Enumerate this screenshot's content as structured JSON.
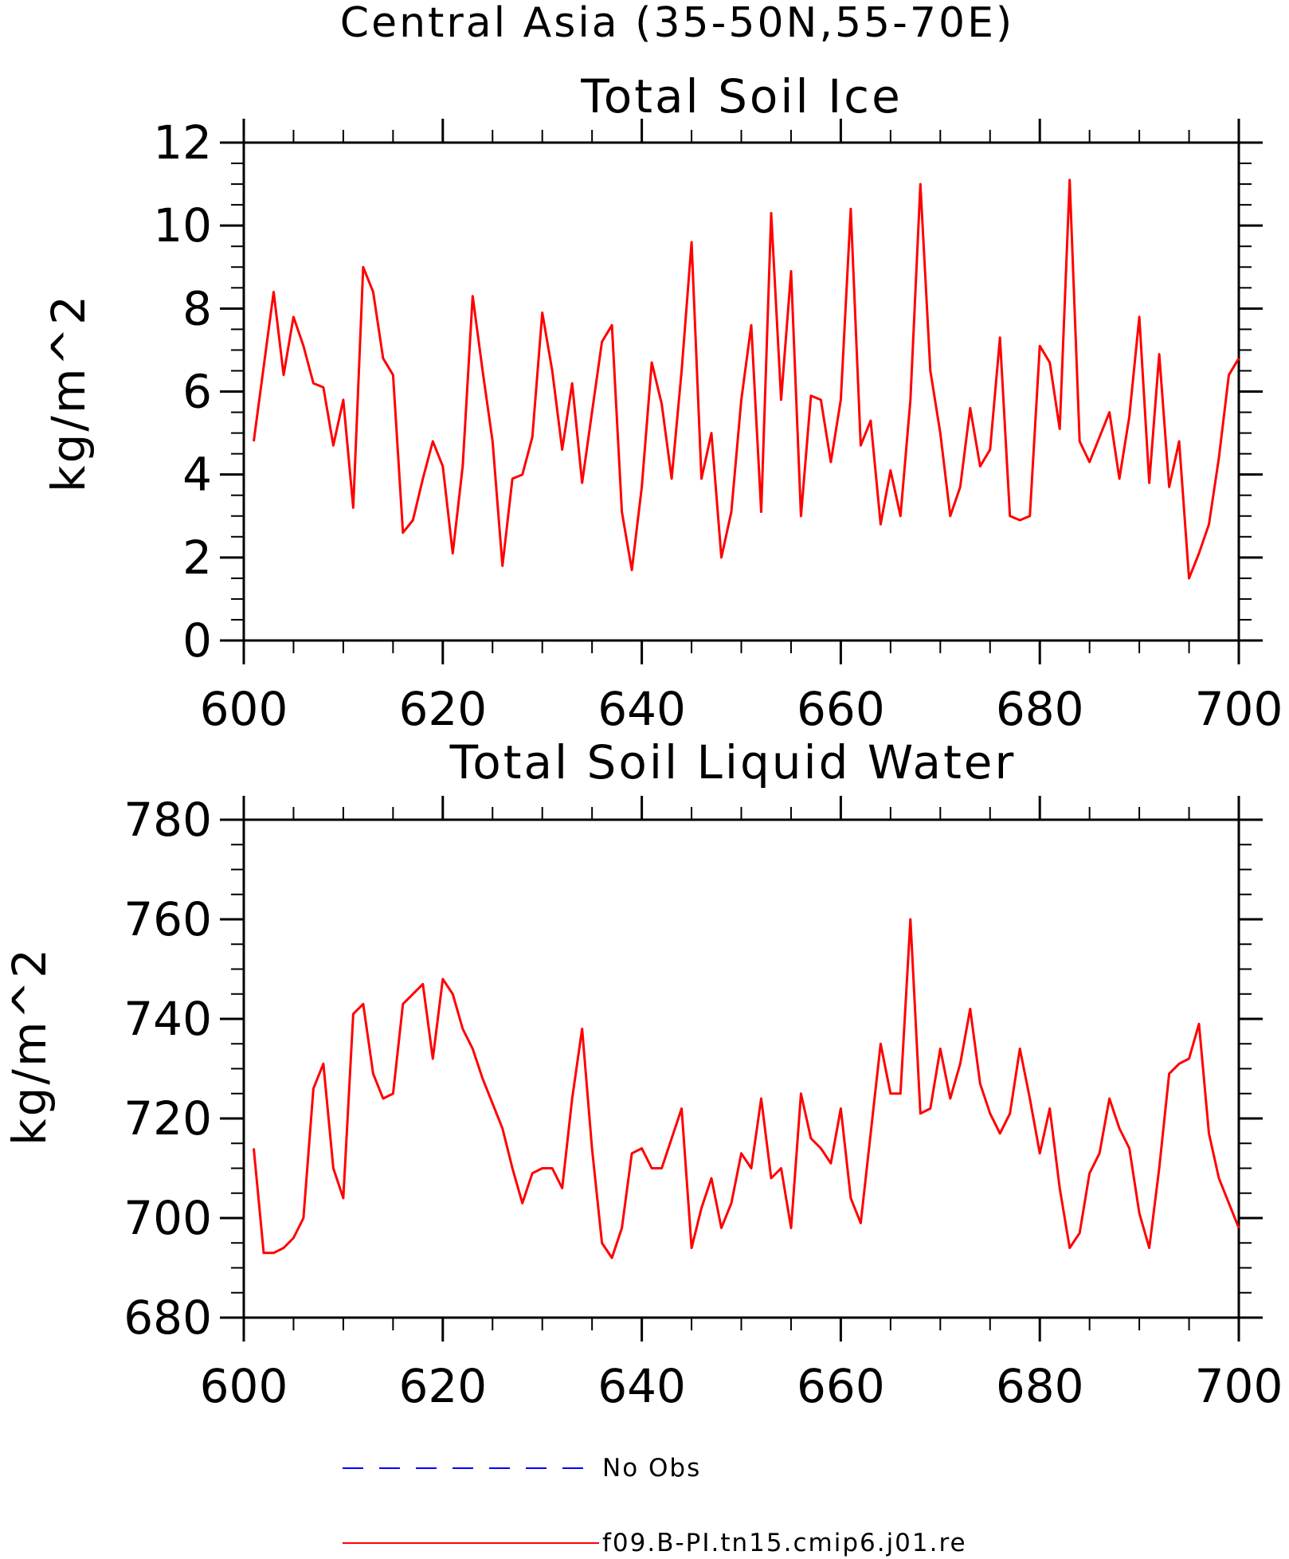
{
  "title": "Central Asia (35-50N,55-70E)",
  "chart_data": [
    {
      "type": "line",
      "title": "Total Soil Ice",
      "ylabel": "kg/m^2",
      "xlabel": "",
      "xlim": [
        600,
        700
      ],
      "ylim": [
        0,
        12
      ],
      "xticks": [
        "600",
        "620",
        "640",
        "660",
        "680",
        "700"
      ],
      "yticks": [
        "0",
        "2",
        "4",
        "6",
        "8",
        "10",
        "12"
      ],
      "x": [
        601,
        602,
        603,
        604,
        605,
        606,
        607,
        608,
        609,
        610,
        611,
        612,
        613,
        614,
        615,
        616,
        617,
        618,
        619,
        620,
        621,
        622,
        623,
        624,
        625,
        626,
        627,
        628,
        629,
        630,
        631,
        632,
        633,
        634,
        635,
        636,
        637,
        638,
        639,
        640,
        641,
        642,
        643,
        644,
        645,
        646,
        647,
        648,
        649,
        650,
        651,
        652,
        653,
        654,
        655,
        656,
        657,
        658,
        659,
        660,
        661,
        662,
        663,
        664,
        665,
        666,
        667,
        668,
        669,
        670,
        671,
        672,
        673,
        674,
        675,
        676,
        677,
        678,
        679,
        680,
        681,
        682,
        683,
        684,
        685,
        686,
        687,
        688,
        689,
        690,
        691,
        692,
        693,
        694,
        695,
        696,
        697,
        698,
        699,
        700
      ],
      "series": [
        {
          "name": "f09.B-PI.tn15.cmip6.j01.re",
          "color": "#ff0000",
          "values": [
            4.8,
            6.6,
            8.4,
            6.4,
            7.8,
            7.1,
            6.2,
            6.1,
            4.7,
            5.8,
            3.2,
            9.0,
            8.4,
            6.8,
            6.4,
            2.6,
            2.9,
            3.9,
            4.8,
            4.2,
            2.1,
            4.2,
            8.3,
            6.5,
            4.8,
            1.8,
            3.9,
            4.0,
            4.9,
            7.9,
            6.5,
            4.6,
            6.2,
            3.8,
            5.5,
            7.2,
            7.6,
            3.1,
            1.7,
            3.7,
            6.7,
            5.7,
            3.9,
            6.5,
            9.6,
            3.9,
            5.0,
            2.0,
            3.1,
            5.8,
            7.6,
            3.1,
            10.3,
            5.8,
            8.9,
            3.0,
            5.9,
            5.8,
            4.3,
            5.8,
            10.4,
            4.7,
            5.3,
            2.8,
            4.1,
            3.0,
            5.8,
            11.0,
            6.5,
            5.0,
            3.0,
            3.7,
            5.6,
            4.2,
            4.6,
            7.3,
            3.0,
            2.9,
            3.0,
            7.1,
            6.7,
            5.1,
            11.1,
            4.8,
            4.3,
            4.9,
            5.5,
            3.9,
            5.4,
            7.8,
            3.8,
            6.9,
            3.7,
            4.8,
            1.5,
            2.1,
            2.8,
            4.4,
            6.4,
            6.8
          ]
        }
      ]
    },
    {
      "type": "line",
      "title": "Total Soil Liquid Water",
      "ylabel": "kg/m^2",
      "xlabel": "",
      "xlim": [
        600,
        700
      ],
      "ylim": [
        680,
        780
      ],
      "xticks": [
        "600",
        "620",
        "640",
        "660",
        "680",
        "700"
      ],
      "yticks": [
        "680",
        "700",
        "720",
        "740",
        "760",
        "780"
      ],
      "x": [
        601,
        602,
        603,
        604,
        605,
        606,
        607,
        608,
        609,
        610,
        611,
        612,
        613,
        614,
        615,
        616,
        617,
        618,
        619,
        620,
        621,
        622,
        623,
        624,
        625,
        626,
        627,
        628,
        629,
        630,
        631,
        632,
        633,
        634,
        635,
        636,
        637,
        638,
        639,
        640,
        641,
        642,
        643,
        644,
        645,
        646,
        647,
        648,
        649,
        650,
        651,
        652,
        653,
        654,
        655,
        656,
        657,
        658,
        659,
        660,
        661,
        662,
        663,
        664,
        665,
        666,
        667,
        668,
        669,
        670,
        671,
        672,
        673,
        674,
        675,
        676,
        677,
        678,
        679,
        680,
        681,
        682,
        683,
        684,
        685,
        686,
        687,
        688,
        689,
        690,
        691,
        692,
        693,
        694,
        695,
        696,
        697,
        698,
        699,
        700
      ],
      "series": [
        {
          "name": "f09.B-PI.tn15.cmip6.j01.re",
          "color": "#ff0000",
          "values": [
            714,
            693,
            693,
            694,
            696,
            700,
            726,
            731,
            710,
            704,
            741,
            743,
            729,
            724,
            725,
            743,
            745,
            747,
            732,
            748,
            745,
            738,
            734,
            728,
            723,
            718,
            710,
            703,
            709,
            710,
            710,
            706,
            724,
            738,
            714,
            695,
            692,
            698,
            713,
            714,
            710,
            710,
            716,
            722,
            694,
            702,
            708,
            698,
            703,
            713,
            710,
            724,
            708,
            710,
            698,
            725,
            716,
            714,
            711,
            722,
            704,
            699,
            717,
            735,
            725,
            725,
            760,
            721,
            722,
            734,
            724,
            731,
            742,
            727,
            721,
            717,
            721,
            734,
            724,
            713,
            722,
            706,
            694,
            697,
            709,
            713,
            724,
            718,
            714,
            701,
            694,
            710,
            729,
            731,
            732,
            739,
            717,
            708,
            703,
            698
          ]
        }
      ]
    }
  ],
  "legend": [
    {
      "label": "No Obs",
      "color": "#0000ff",
      "style": "dashed"
    },
    {
      "label": "f09.B-PI.tn15.cmip6.j01.re",
      "color": "#ff0000",
      "style": "solid"
    }
  ]
}
